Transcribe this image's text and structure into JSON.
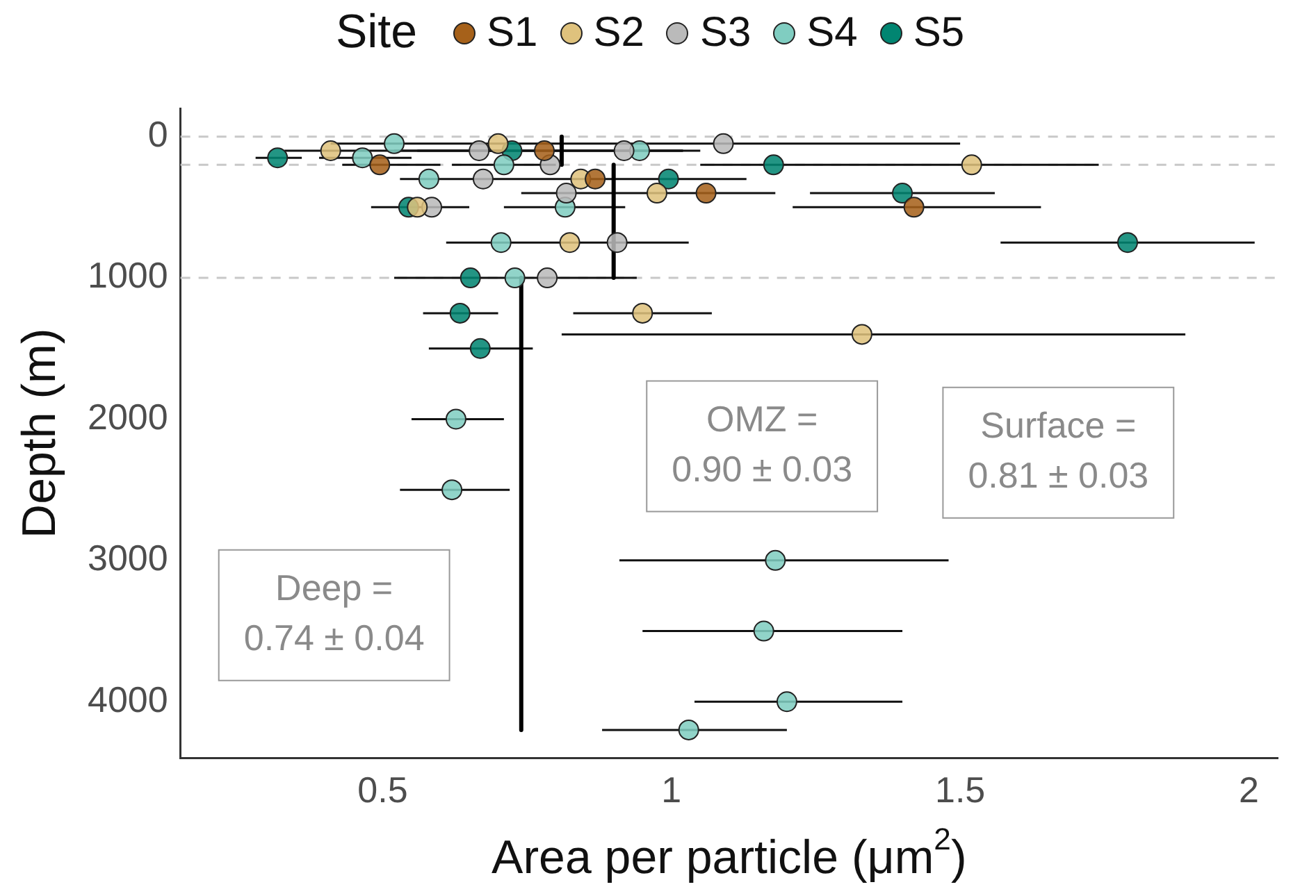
{
  "chart_data": {
    "type": "scatter",
    "xlabel": "Area per particle (μm$^{2}$)",
    "ylabel": "Depth (m)",
    "legend_title": "Site",
    "legend": "top",
    "marker": "circle",
    "grid": false,
    "xlim": [
      0.15,
      2.05
    ],
    "xticks": [
      0.5,
      1.0,
      1.5,
      2.0
    ],
    "ylim": [
      4400,
      -200
    ],
    "yticks": [
      0,
      1000,
      2000,
      3000,
      4000
    ],
    "series": [
      {
        "name": "S1",
        "color": "#a6611a",
        "x": [
          0.495,
          0.78,
          0.868,
          1.06,
          1.42
        ],
        "values": [
          200,
          100,
          300,
          400,
          500
        ],
        "xerrors": [
          [
            0.43,
            0.6
          ],
          [
            0.52,
            1.05
          ],
          null,
          [
            0.74,
            1.18
          ],
          [
            1.21,
            1.64
          ]
        ]
      },
      {
        "name": "S2",
        "color": "#dfc27d",
        "x": [
          0.41,
          0.7,
          0.843,
          0.975,
          0.56,
          0.824,
          1.52,
          0.95,
          1.33
        ],
        "values": [
          100,
          50,
          300,
          400,
          500,
          750,
          200,
          1250,
          1400
        ],
        "xerrors": [
          [
            0.33,
            1.02
          ],
          null,
          [
            0.53,
            1.13
          ],
          null,
          null,
          null,
          null,
          [
            0.83,
            1.07
          ],
          [
            0.81,
            1.89
          ]
        ]
      },
      {
        "name": "S3",
        "color": "#bababa",
        "x": [
          1.09,
          0.667,
          0.918,
          0.79,
          0.674,
          0.818,
          0.585,
          0.906,
          0.785
        ],
        "values": [
          50,
          100,
          100,
          200,
          300,
          400,
          500,
          750,
          1000
        ],
        "xerrors": [
          [
            0.41,
            1.5
          ],
          null,
          null,
          null,
          null,
          null,
          null,
          null,
          null
        ]
      },
      {
        "name": "S4",
        "color": "#80cdc1",
        "x": [
          0.52,
          0.945,
          0.465,
          0.71,
          0.58,
          0.816,
          0.705,
          0.729,
          0.627,
          0.62,
          1.18,
          1.16,
          1.2,
          1.03
        ],
        "values": [
          50,
          100,
          150,
          200,
          300,
          500,
          750,
          1000,
          2000,
          2500,
          3000,
          3500,
          4000,
          4200
        ],
        "xerrors": [
          null,
          null,
          [
            0.39,
            0.55
          ],
          [
            0.62,
            0.8
          ],
          null,
          [
            0.71,
            0.92
          ],
          [
            0.61,
            1.03
          ],
          [
            0.52,
            0.94
          ],
          [
            0.55,
            0.71
          ],
          [
            0.53,
            0.72
          ],
          [
            0.91,
            1.48
          ],
          [
            0.95,
            1.4
          ],
          [
            1.04,
            1.4
          ],
          [
            0.88,
            1.2
          ]
        ]
      },
      {
        "name": "S5",
        "color": "#018571",
        "x": [
          0.318,
          0.724,
          1.177,
          0.995,
          1.4,
          0.545,
          1.79,
          0.652,
          0.634,
          0.669
        ],
        "values": [
          150,
          100,
          200,
          300,
          400,
          500,
          750,
          1000,
          1250,
          1500
        ],
        "xerrors": [
          [
            0.28,
            0.36
          ],
          [
            0.56,
            1.02
          ],
          [
            1.05,
            1.74
          ],
          null,
          [
            1.24,
            1.56
          ],
          [
            0.48,
            0.65
          ],
          [
            1.57,
            2.01
          ],
          null,
          [
            0.57,
            0.7
          ],
          [
            0.58,
            0.76
          ]
        ]
      },
      {
        "type": "line",
        "marker": "none",
        "color": "#000000",
        "x": [
          0.81,
          0.81
        ],
        "values": [
          0,
          200
        ]
      },
      {
        "type": "line",
        "marker": "none",
        "color": "#000000",
        "x": [
          0.9,
          0.9
        ],
        "values": [
          200,
          1000
        ]
      },
      {
        "type": "line",
        "marker": "none",
        "color": "#000000",
        "x": [
          0.74,
          0.74
        ],
        "values": [
          1000,
          4200
        ]
      }
    ],
    "ref_lines": [
      {
        "axis": "y",
        "value": 0,
        "color": "#c8c8c8",
        "line_style": "dashed"
      },
      {
        "axis": "y",
        "value": 200,
        "color": "#c8c8c8",
        "line_style": "dashed"
      },
      {
        "axis": "y",
        "value": 1000,
        "color": "#c8c8c8",
        "line_style": "dashed"
      }
    ],
    "annotations": [
      "Surface =\n0.81 ± 0.03",
      "OMZ =\n0.90 ± 0.03",
      "Deep =\n0.74 ± 0.04"
    ]
  }
}
